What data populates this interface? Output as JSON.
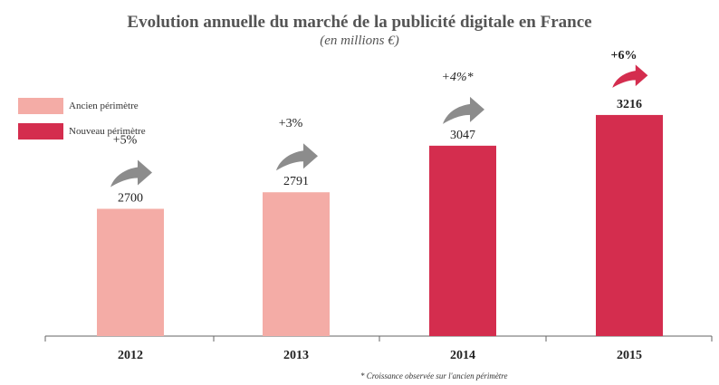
{
  "chart_data": {
    "type": "bar",
    "title": "Evolution annuelle du marché de la publicité digitale en France",
    "subtitle": "(en millions €)",
    "categories": [
      "2012",
      "2013",
      "2014",
      "2015"
    ],
    "values": [
      2700,
      2791,
      3047,
      3216
    ],
    "growth_labels": [
      "+5%",
      "+3%",
      "+4%*",
      "+6%"
    ],
    "series_of_category": [
      "ancien",
      "ancien",
      "nouveau",
      "nouveau"
    ],
    "legend": [
      {
        "key": "ancien",
        "label": "Ancien périmètre",
        "color": "#f4aca6"
      },
      {
        "key": "nouveau",
        "label": "Nouveau périmètre",
        "color": "#d42d4e"
      }
    ],
    "ylim": [
      2000,
      3400
    ],
    "legend_position": "top-left",
    "footnote": "* Croissance observée  sur l'ancien périmètre"
  },
  "colors": {
    "axis": "#666666",
    "arrow_grey": "#8c8c8c",
    "arrow_red": "#d42d4e"
  }
}
